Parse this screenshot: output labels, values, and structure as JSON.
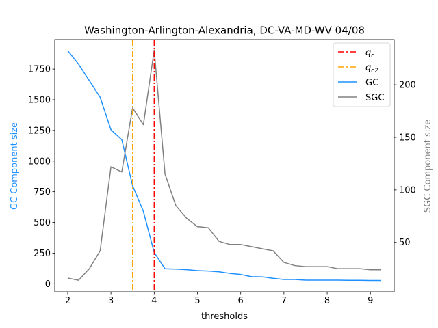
{
  "chart_data": {
    "type": "line",
    "title": "Washington-Arlington-Alexandria, DC-VA-MD-WV 04/08",
    "xlabel": "thresholds",
    "ylabel_left": "GC Component size",
    "ylabel_right": "SGC Component size",
    "xlim": [
      1.7,
      9.55
    ],
    "ylim_left": [
      -65,
      1990
    ],
    "ylim_right": [
      3,
      243
    ],
    "x_ticks": [
      2,
      3,
      4,
      5,
      6,
      7,
      8,
      9
    ],
    "y_ticks_left": [
      0,
      250,
      500,
      750,
      1000,
      1250,
      1500,
      1750
    ],
    "y_ticks_right": [
      50,
      100,
      150,
      200
    ],
    "grid": false,
    "legend_position": "top-right",
    "x": [
      2,
      2.25,
      2.5,
      2.75,
      3,
      3.25,
      3.5,
      3.75,
      4,
      4.25,
      4.5,
      4.75,
      5,
      5.25,
      5.5,
      5.75,
      6,
      6.25,
      6.5,
      6.75,
      7,
      7.25,
      7.5,
      7.75,
      8,
      8.25,
      8.5,
      8.75,
      9,
      9.25
    ],
    "series": [
      {
        "name": "GC",
        "axis": "left",
        "color": "#1e90ff",
        "values": [
          1900,
          1790,
          1655,
          1520,
          1255,
          1175,
          800,
          590,
          255,
          123,
          120,
          115,
          108,
          104,
          98,
          85,
          76,
          58,
          57,
          45,
          35,
          35,
          30,
          30,
          30,
          30,
          28,
          28,
          27,
          27
        ]
      },
      {
        "name": "SGC",
        "axis": "right",
        "color": "#808080",
        "values": [
          16,
          14,
          25,
          42,
          122,
          117,
          178,
          162,
          233,
          115,
          85,
          73,
          65,
          64,
          51,
          48,
          48,
          46,
          44,
          42,
          31,
          28,
          27,
          27,
          27,
          25,
          25,
          25,
          24,
          24
        ]
      }
    ],
    "vlines": [
      {
        "name": "q_c",
        "x": 4.0,
        "color": "#ff0000"
      },
      {
        "name": "q_c2",
        "x": 3.5,
        "color": "#ffa500"
      }
    ],
    "legend": [
      {
        "main": "q",
        "sub": "c",
        "kind": "dashdot",
        "color": "#ff0000"
      },
      {
        "main": "q",
        "sub": "c2",
        "kind": "dashdot",
        "color": "#ffa500"
      },
      {
        "main": "GC",
        "sub": "",
        "kind": "line",
        "color": "#1e90ff"
      },
      {
        "main": "SGC",
        "sub": "",
        "kind": "line",
        "color": "#808080"
      }
    ]
  }
}
